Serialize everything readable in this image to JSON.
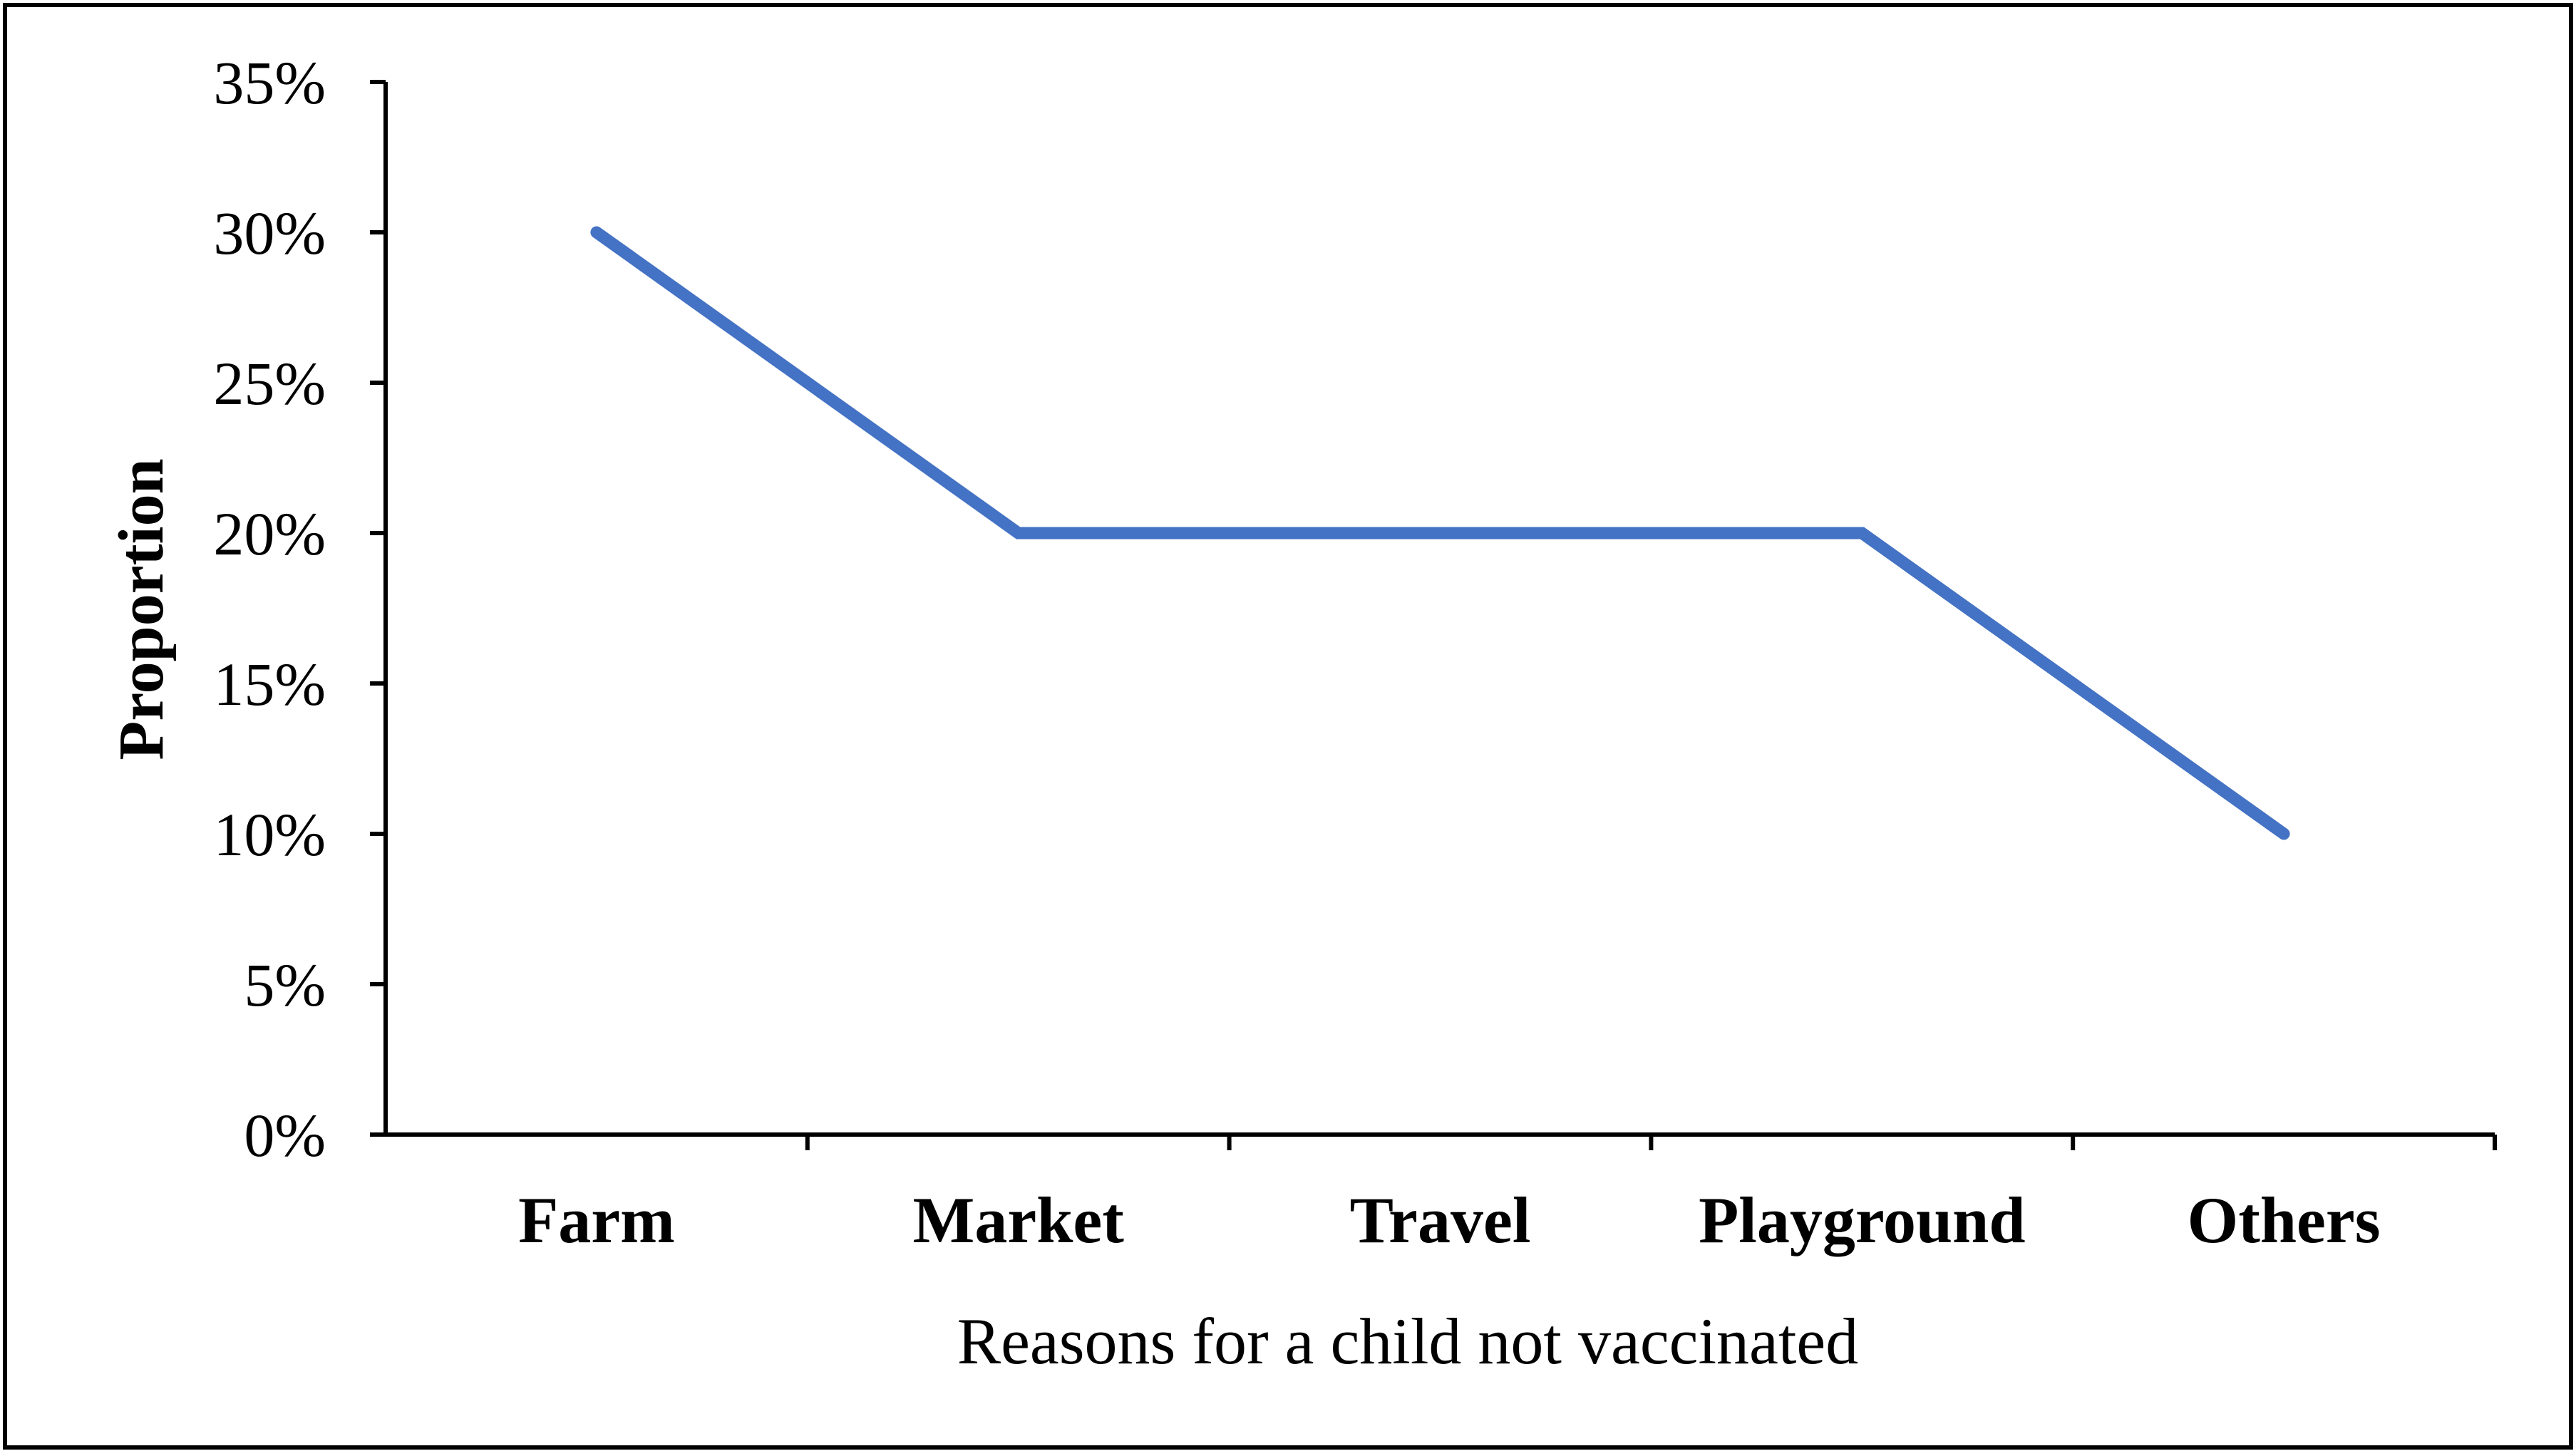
{
  "chart_data": {
    "type": "line",
    "categories": [
      "Farm",
      "Market",
      "Travel",
      "Playground",
      "Others"
    ],
    "series": [
      {
        "values": [
          30,
          20,
          20,
          20,
          10
        ],
        "color": "#4472C4"
      }
    ],
    "xlabel": "Reasons for a child not vaccinated",
    "ylabel": "Proportion",
    "ylim": [
      0,
      35
    ],
    "yticks": [
      0,
      5,
      10,
      15,
      20,
      25,
      30,
      35
    ],
    "ytick_labels": [
      "0%",
      "5%",
      "10%",
      "15%",
      "20%",
      "25%",
      "30%",
      "35%"
    ],
    "grid": false,
    "legend": "none"
  }
}
